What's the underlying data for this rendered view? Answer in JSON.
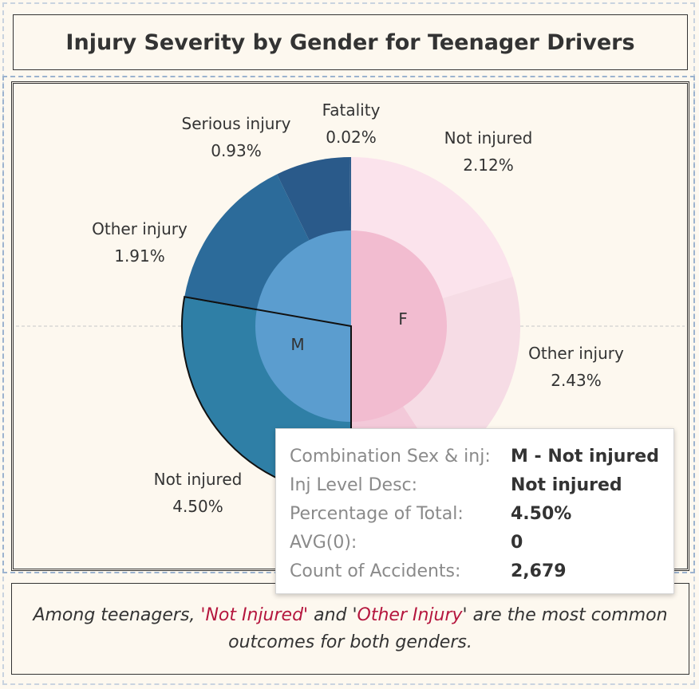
{
  "title": "Injury Severity by Gender for Teenager Drivers",
  "chart_data": {
    "type": "pie",
    "subtype": "nested-donut",
    "inner": [
      {
        "label": "M",
        "color": "#5b9dcf"
      },
      {
        "label": "F",
        "color": "#f2bcd0"
      }
    ],
    "outer": [
      {
        "gender": "F",
        "label": "Not injured",
        "value_text": "2.12%",
        "color": "#fbe3ec"
      },
      {
        "gender": "F",
        "label": "Other injury",
        "value_text": "2.43%",
        "color": "#f6dce5"
      },
      {
        "gender": "F",
        "label": "Serious injury",
        "value_text": "",
        "color": "#f3c9d9"
      },
      {
        "gender": "M",
        "label": "Not injured",
        "value_text": "4.50%",
        "color": "#2f7fa6",
        "selected": true
      },
      {
        "gender": "M",
        "label": "Other injury",
        "value_text": "1.91%",
        "color": "#2c6b9a"
      },
      {
        "gender": "M",
        "label": "Serious injury",
        "value_text": "0.93%",
        "color": "#2a5a8a"
      },
      {
        "gender": "M",
        "label": "Fatality",
        "value_text": "0.02%",
        "color": "#2a5a8a"
      }
    ]
  },
  "tooltip": {
    "rows": [
      {
        "key": "Combination Sex & inj:",
        "value": "M - Not injured"
      },
      {
        "key": "Inj Level Desc:",
        "value": "Not injured"
      },
      {
        "key": "Percentage of Total:",
        "value": "4.50%"
      },
      {
        "key": "AVG(0):",
        "value": "0"
      },
      {
        "key": "Count of Accidents:",
        "value": "2,679"
      }
    ]
  },
  "caption": {
    "part1": "Among teenagers, ",
    "hl1": "'Not Injured'",
    "part2": " and '",
    "hl2": "Other Injury",
    "part3": "' are the most common outcomes for both genders."
  }
}
